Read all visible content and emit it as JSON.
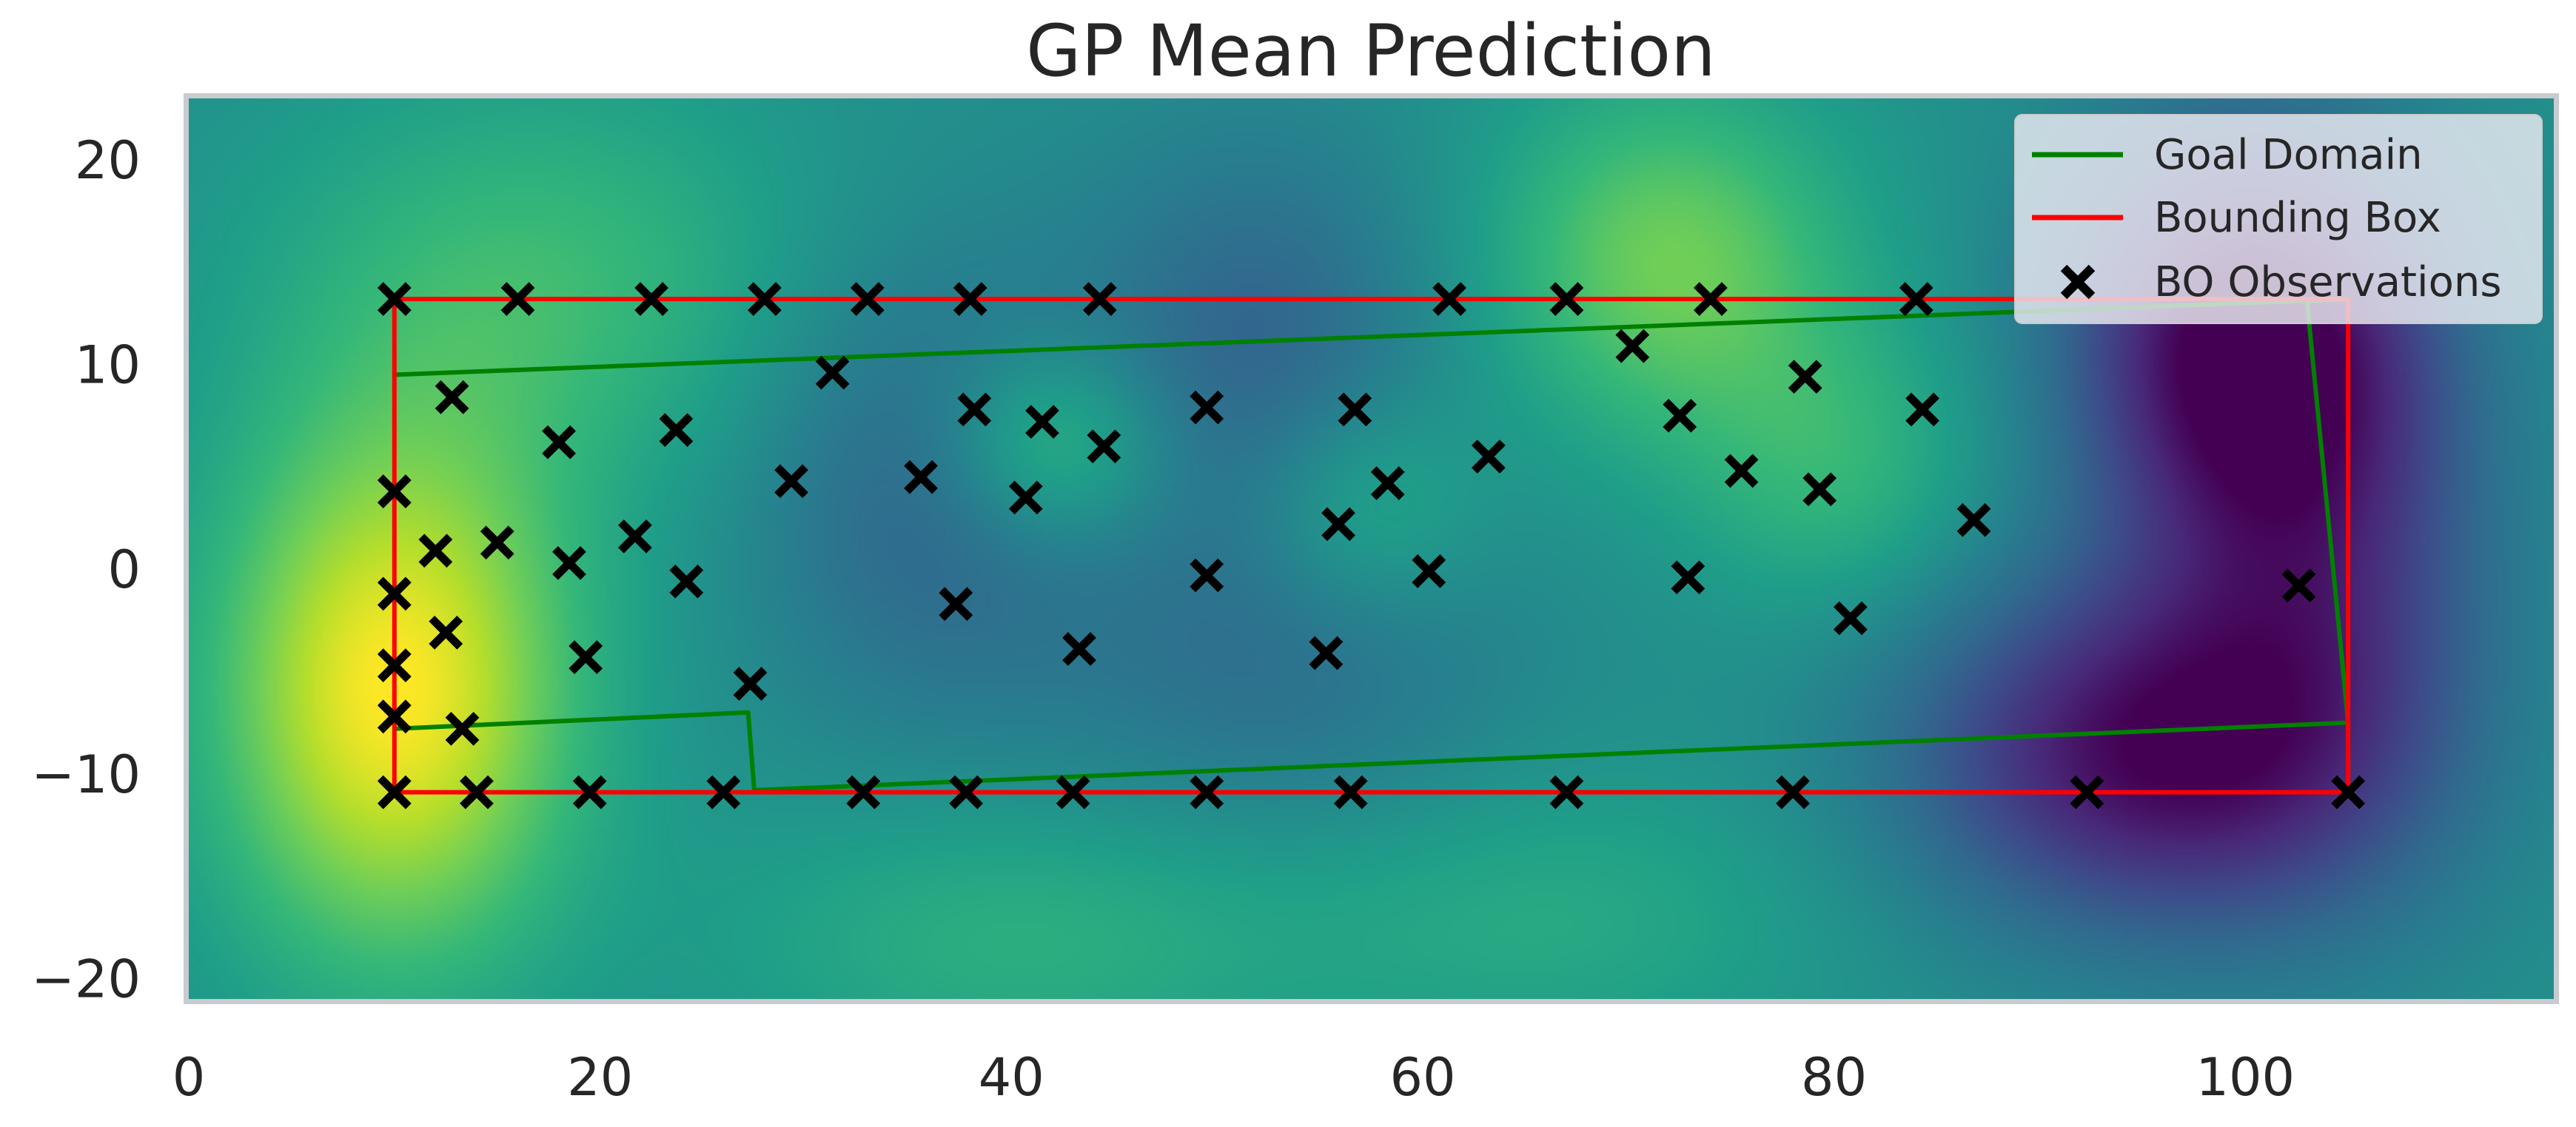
{
  "chart_data": {
    "type": "heatmap",
    "title": "GP Mean Prediction",
    "xlabel": "",
    "ylabel": "",
    "xlim": [
      0,
      115
    ],
    "ylim": [
      -21,
      23
    ],
    "grid": false,
    "x_ticks": [
      0,
      20,
      40,
      60,
      80,
      100
    ],
    "x_tick_labels": [
      "0",
      "20",
      "40",
      "60",
      "80",
      "100"
    ],
    "y_ticks": [
      -20,
      -10,
      0,
      10,
      20
    ],
    "y_tick_labels": [
      "−20",
      "−10",
      "0",
      "10",
      "20"
    ],
    "colormap": "viridis",
    "colormap_stops": [
      "#440154",
      "#482878",
      "#3e4989",
      "#31688e",
      "#26828e",
      "#1f9e89",
      "#35b779",
      "#6ece58",
      "#b5de2b",
      "#fde725"
    ],
    "heatmap_features": [
      {
        "x": 10,
        "y": -6,
        "amp": 1.0,
        "sx": 6,
        "sy": 9
      },
      {
        "x": 17,
        "y": 14,
        "amp": 0.35,
        "sx": 9,
        "sy": 7
      },
      {
        "x": 36,
        "y": 4,
        "amp": -0.35,
        "sx": 6,
        "sy": 8
      },
      {
        "x": 42,
        "y": 6,
        "amp": 0.45,
        "sx": 4,
        "sy": 3.5
      },
      {
        "x": 40,
        "y": -18,
        "amp": 0.25,
        "sx": 10,
        "sy": 5
      },
      {
        "x": 52,
        "y": 11,
        "amp": -0.35,
        "sx": 6,
        "sy": 7
      },
      {
        "x": 53,
        "y": -5,
        "amp": -0.25,
        "sx": 8,
        "sy": 6
      },
      {
        "x": 57,
        "y": 3,
        "amp": 0.3,
        "sx": 4,
        "sy": 4
      },
      {
        "x": 72,
        "y": 15,
        "amp": 0.55,
        "sx": 6,
        "sy": 6
      },
      {
        "x": 66,
        "y": -17,
        "amp": 0.2,
        "sx": 10,
        "sy": 5
      },
      {
        "x": 80,
        "y": 5,
        "amp": 0.3,
        "sx": 5,
        "sy": 5
      },
      {
        "x": 100,
        "y": 11,
        "amp": -1.0,
        "sx": 6,
        "sy": 7
      },
      {
        "x": 95,
        "y": -9,
        "amp": -0.9,
        "sx": 8,
        "sy": 6
      },
      {
        "x": 104,
        "y": -1,
        "amp": -0.5,
        "sx": 6,
        "sy": 10
      }
    ],
    "series": [
      {
        "name": "Goal Domain",
        "kind": "line",
        "color": "#008000",
        "x": [
          10,
          105,
          103,
          105,
          27.5,
          27.2,
          10
        ],
        "y": [
          9.5,
          13.2,
          13.1,
          -7.5,
          -10.8,
          -7.0,
          -7.8
        ]
      },
      {
        "name": "Bounding Box",
        "kind": "line",
        "color": "#ff0000",
        "x": [
          10,
          105,
          105,
          10,
          10
        ],
        "y": [
          13.2,
          13.2,
          -10.9,
          -10.9,
          13.2
        ]
      },
      {
        "name": "BO Observations",
        "kind": "scatter",
        "marker": "x",
        "color": "#000000",
        "points": [
          [
            10,
            13.2
          ],
          [
            16,
            13.2
          ],
          [
            22.5,
            13.2
          ],
          [
            28,
            13.2
          ],
          [
            33,
            13.2
          ],
          [
            38,
            13.2
          ],
          [
            44.3,
            13.2
          ],
          [
            61.3,
            13.2
          ],
          [
            67,
            13.2
          ],
          [
            74,
            13.2
          ],
          [
            84,
            13.2
          ],
          [
            10,
            -10.9
          ],
          [
            14,
            -10.9
          ],
          [
            19.5,
            -10.9
          ],
          [
            26,
            -10.9
          ],
          [
            32.8,
            -10.9
          ],
          [
            37.8,
            -10.9
          ],
          [
            43,
            -10.9
          ],
          [
            49.5,
            -10.9
          ],
          [
            56.5,
            -10.9
          ],
          [
            67,
            -10.9
          ],
          [
            78,
            -10.9
          ],
          [
            92.3,
            -10.9
          ],
          [
            105,
            -10.9
          ],
          [
            10,
            3.8
          ],
          [
            10,
            -1.2
          ],
          [
            10,
            -4.7
          ],
          [
            10,
            -7.2
          ],
          [
            12.8,
            8.4
          ],
          [
            12,
            0.9
          ],
          [
            12.5,
            -3.1
          ],
          [
            13.3,
            -7.8
          ],
          [
            15,
            1.3
          ],
          [
            18,
            6.2
          ],
          [
            18.5,
            0.3
          ],
          [
            19.3,
            -4.3
          ],
          [
            21.7,
            1.6
          ],
          [
            23.7,
            6.8
          ],
          [
            24.2,
            -0.6
          ],
          [
            27.3,
            -5.6
          ],
          [
            29.3,
            4.3
          ],
          [
            31.3,
            9.6
          ],
          [
            35.6,
            4.5
          ],
          [
            37.3,
            -1.7
          ],
          [
            38.2,
            7.8
          ],
          [
            40.7,
            3.5
          ],
          [
            41.5,
            7.2
          ],
          [
            43.3,
            -3.9
          ],
          [
            44.5,
            6.0
          ],
          [
            49.5,
            7.9
          ],
          [
            49.5,
            -0.3
          ],
          [
            55.3,
            -4.1
          ],
          [
            55.9,
            2.2
          ],
          [
            56.7,
            7.8
          ],
          [
            58.3,
            4.2
          ],
          [
            60.3,
            -0.1
          ],
          [
            63.2,
            5.5
          ],
          [
            70.2,
            10.9
          ],
          [
            72.5,
            7.5
          ],
          [
            72.9,
            -0.4
          ],
          [
            75.5,
            4.8
          ],
          [
            78.6,
            9.4
          ],
          [
            79.3,
            3.9
          ],
          [
            80.8,
            -2.4
          ],
          [
            84.3,
            7.8
          ],
          [
            86.8,
            2.4
          ],
          [
            102.6,
            -0.8
          ]
        ]
      }
    ],
    "legend": {
      "position": "top-right",
      "entries": [
        {
          "label": "Goal Domain",
          "symbol": "line",
          "color": "#008000"
        },
        {
          "label": "Bounding Box",
          "symbol": "line",
          "color": "#ff0000"
        },
        {
          "label": "BO Observations",
          "symbol": "x",
          "color": "#000000"
        }
      ]
    }
  }
}
